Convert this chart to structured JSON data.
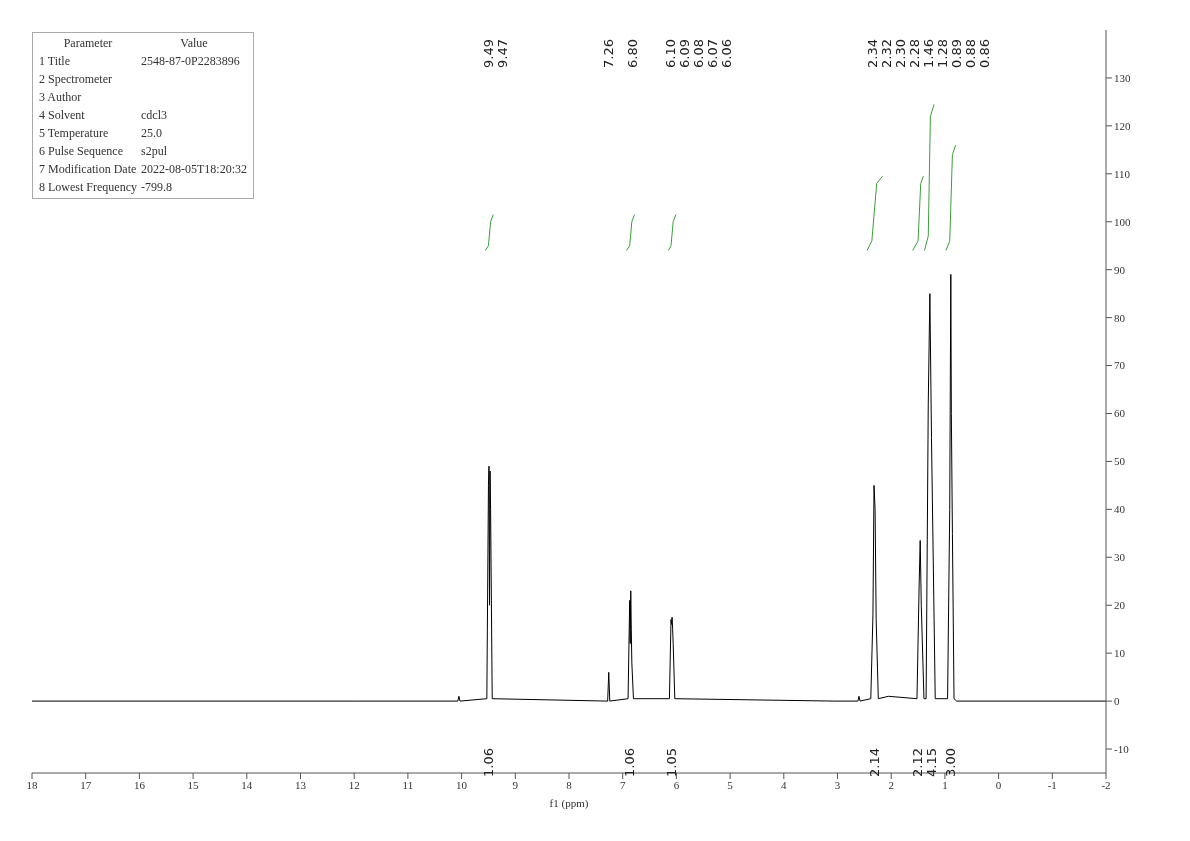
{
  "chart_data": {
    "type": "line",
    "xlabel": "f1 (ppm)",
    "xlim": [
      18,
      -2
    ],
    "xticks": [
      18,
      17,
      16,
      15,
      14,
      13,
      12,
      11,
      10,
      9,
      8,
      7,
      6,
      5,
      4,
      3,
      2,
      1,
      0,
      -1,
      -2
    ],
    "ylim": [
      -15,
      140
    ],
    "yticks": [
      -10,
      0,
      10,
      20,
      30,
      40,
      50,
      60,
      70,
      80,
      90,
      100,
      110,
      120,
      130
    ],
    "series": [
      {
        "color": "#000000",
        "x": [
          18,
          12,
          10.07,
          10.05,
          10.03,
          9.53,
          9.5,
          9.49,
          9.48,
          9.47,
          9.46,
          9.43,
          7.28,
          7.26,
          7.24,
          6.9,
          6.87,
          6.86,
          6.85,
          6.84,
          6.83,
          6.8,
          6.13,
          6.1,
          6.09,
          6.08,
          6.07,
          6.06,
          6.03,
          3.05,
          2.62,
          2.6,
          2.58,
          2.38,
          2.34,
          2.32,
          2.3,
          2.28,
          2.24,
          2.05,
          1.52,
          1.48,
          1.46,
          1.44,
          1.39,
          1.35,
          1.31,
          1.28,
          1.25,
          1.18,
          0.95,
          0.91,
          0.89,
          0.88,
          0.86,
          0.83,
          0.78,
          -2
        ],
        "values": [
          0,
          0,
          0,
          1,
          0,
          0.5,
          45,
          49,
          20,
          48,
          40,
          0.5,
          0,
          6,
          0,
          0.5,
          21,
          12,
          23,
          15,
          8,
          0.5,
          0.5,
          17,
          16,
          17.5,
          15,
          12,
          0.5,
          0,
          0,
          1,
          0,
          0.5,
          18,
          45,
          40,
          17,
          0.5,
          1,
          0.5,
          24,
          33.5,
          20,
          0.5,
          0.5,
          62,
          85,
          55,
          0.5,
          0.5,
          40,
          89,
          60,
          35,
          0.5,
          0,
          0
        ]
      },
      {
        "color": "#3c9e3c",
        "x": [
          9.56,
          9.5,
          9.46,
          9.41
        ],
        "values": [
          94,
          95,
          100,
          101.5
        ]
      },
      {
        "color": "#3c9e3c",
        "x": [
          6.93,
          6.87,
          6.83,
          6.78
        ],
        "values": [
          94,
          95,
          100,
          101.5
        ]
      },
      {
        "color": "#3c9e3c",
        "x": [
          6.15,
          6.1,
          6.06,
          6.01
        ],
        "values": [
          94,
          95,
          100,
          101.5
        ]
      },
      {
        "color": "#3c9e3c",
        "x": [
          2.45,
          2.36,
          2.27,
          2.16
        ],
        "values": [
          94,
          96,
          108,
          109.5
        ]
      },
      {
        "color": "#3c9e3c",
        "x": [
          1.6,
          1.5,
          1.45,
          1.4
        ],
        "values": [
          94,
          96,
          108,
          109.5
        ]
      },
      {
        "color": "#3c9e3c",
        "x": [
          1.38,
          1.31,
          1.27,
          1.2
        ],
        "values": [
          94,
          97,
          122,
          124.5
        ]
      },
      {
        "color": "#3c9e3c",
        "x": [
          0.98,
          0.91,
          0.86,
          0.8
        ],
        "values": [
          94,
          96,
          114,
          116
        ]
      }
    ],
    "annotations": [
      "Parameter",
      "Value",
      "1 Title",
      "2548-87-0P2283896",
      "2 Spectrometer",
      null,
      "3 Author",
      null,
      "4 Solvent",
      "cdcl3",
      "5 Temperature",
      "25.0",
      "6 Pulse Sequence",
      "s2pul",
      "7 Modification Date",
      "2022-08-05T18:20:32",
      "8 Lowest Frequency",
      "-799.8",
      "9.49",
      "9.47",
      "7.26",
      "6.80",
      "6.10",
      "6.09",
      "6.08",
      "6.07",
      "6.06",
      "2.34",
      "2.32",
      "2.30",
      "2.28",
      "1.46",
      "1.28",
      "0.89",
      "0.88",
      "0.86",
      "1.06",
      "1.06",
      "1.05",
      "2.14",
      "2.12",
      "4.15",
      "3.00"
    ]
  }
}
